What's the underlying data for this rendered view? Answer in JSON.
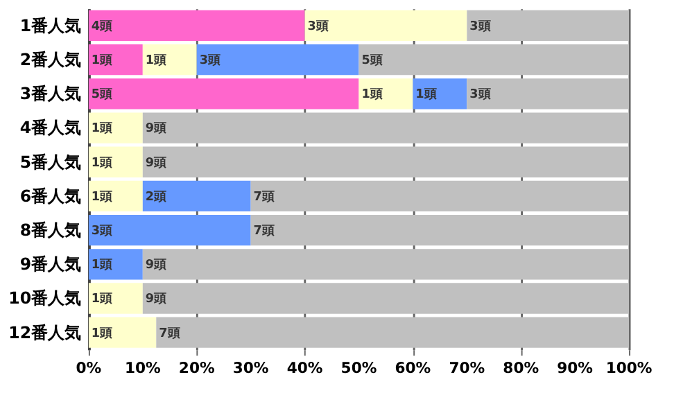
{
  "chart_data": {
    "type": "bar",
    "orientation": "horizontal",
    "stacked": true,
    "grid": "x",
    "categories": [
      "1番人気",
      "2番人気",
      "3番人気",
      "4番人気",
      "5番人気",
      "6番人気",
      "8番人気",
      "9番人気",
      "10番人気",
      "12番人気"
    ],
    "xlim": [
      0,
      100
    ],
    "xticks": [
      {
        "value": 0,
        "label": "0%"
      },
      {
        "value": 10,
        "label": "10%"
      },
      {
        "value": 20,
        "label": "20%"
      },
      {
        "value": 30,
        "label": "30%"
      },
      {
        "value": 40,
        "label": "40%"
      },
      {
        "value": 50,
        "label": "50%"
      },
      {
        "value": 60,
        "label": "60%"
      },
      {
        "value": 70,
        "label": "70%"
      },
      {
        "value": 80,
        "label": "80%"
      },
      {
        "value": 90,
        "label": "90%"
      },
      {
        "value": 100,
        "label": "100%"
      }
    ],
    "series": [
      {
        "color": "#ff66cc",
        "values": [
          40,
          10,
          50,
          0,
          0,
          0,
          0,
          0,
          0,
          0
        ]
      },
      {
        "color": "#ffffcc",
        "values": [
          30,
          10,
          10,
          10,
          10,
          10,
          0,
          0,
          10,
          12.5
        ]
      },
      {
        "color": "#6699ff",
        "values": [
          0,
          30,
          10,
          0,
          0,
          20,
          30,
          10,
          0,
          0
        ]
      },
      {
        "color": "#c0c0c0",
        "values": [
          30,
          50,
          30,
          90,
          90,
          70,
          70,
          90,
          90,
          87.5
        ]
      }
    ],
    "annotations": [
      {
        "text": "4頭",
        "x": 0,
        "y": "1番人気"
      },
      {
        "text": "3頭",
        "x": 40,
        "y": "1番人気"
      },
      {
        "text": "3頭",
        "x": 70,
        "y": "1番人気"
      },
      {
        "text": "1頭",
        "x": 0,
        "y": "2番人気"
      },
      {
        "text": "1頭",
        "x": 10,
        "y": "2番人気"
      },
      {
        "text": "3頭",
        "x": 20,
        "y": "2番人気"
      },
      {
        "text": "5頭",
        "x": 50,
        "y": "2番人気"
      },
      {
        "text": "5頭",
        "x": 0,
        "y": "3番人気"
      },
      {
        "text": "1頭",
        "x": 50,
        "y": "3番人気"
      },
      {
        "text": "1頭",
        "x": 60,
        "y": "3番人気"
      },
      {
        "text": "3頭",
        "x": 70,
        "y": "3番人気"
      },
      {
        "text": "1頭",
        "x": 0,
        "y": "4番人気"
      },
      {
        "text": "9頭",
        "x": 10,
        "y": "4番人気"
      },
      {
        "text": "1頭",
        "x": 0,
        "y": "5番人気"
      },
      {
        "text": "9頭",
        "x": 10,
        "y": "5番人気"
      },
      {
        "text": "1頭",
        "x": 0,
        "y": "6番人気"
      },
      {
        "text": "2頭",
        "x": 10,
        "y": "6番人気"
      },
      {
        "text": "7頭",
        "x": 30,
        "y": "6番人気"
      },
      {
        "text": "3頭",
        "x": 0,
        "y": "8番人気"
      },
      {
        "text": "7頭",
        "x": 30,
        "y": "8番人気"
      },
      {
        "text": "1頭",
        "x": 0,
        "y": "9番人気"
      },
      {
        "text": "9頭",
        "x": 10,
        "y": "9番人気"
      },
      {
        "text": "1頭",
        "x": 0,
        "y": "10番人気"
      },
      {
        "text": "9頭",
        "x": 10,
        "y": "10番人気"
      },
      {
        "text": "1頭",
        "x": 0,
        "y": "12番人気"
      },
      {
        "text": "7頭",
        "x": 12.5,
        "y": "12番人気"
      }
    ]
  }
}
